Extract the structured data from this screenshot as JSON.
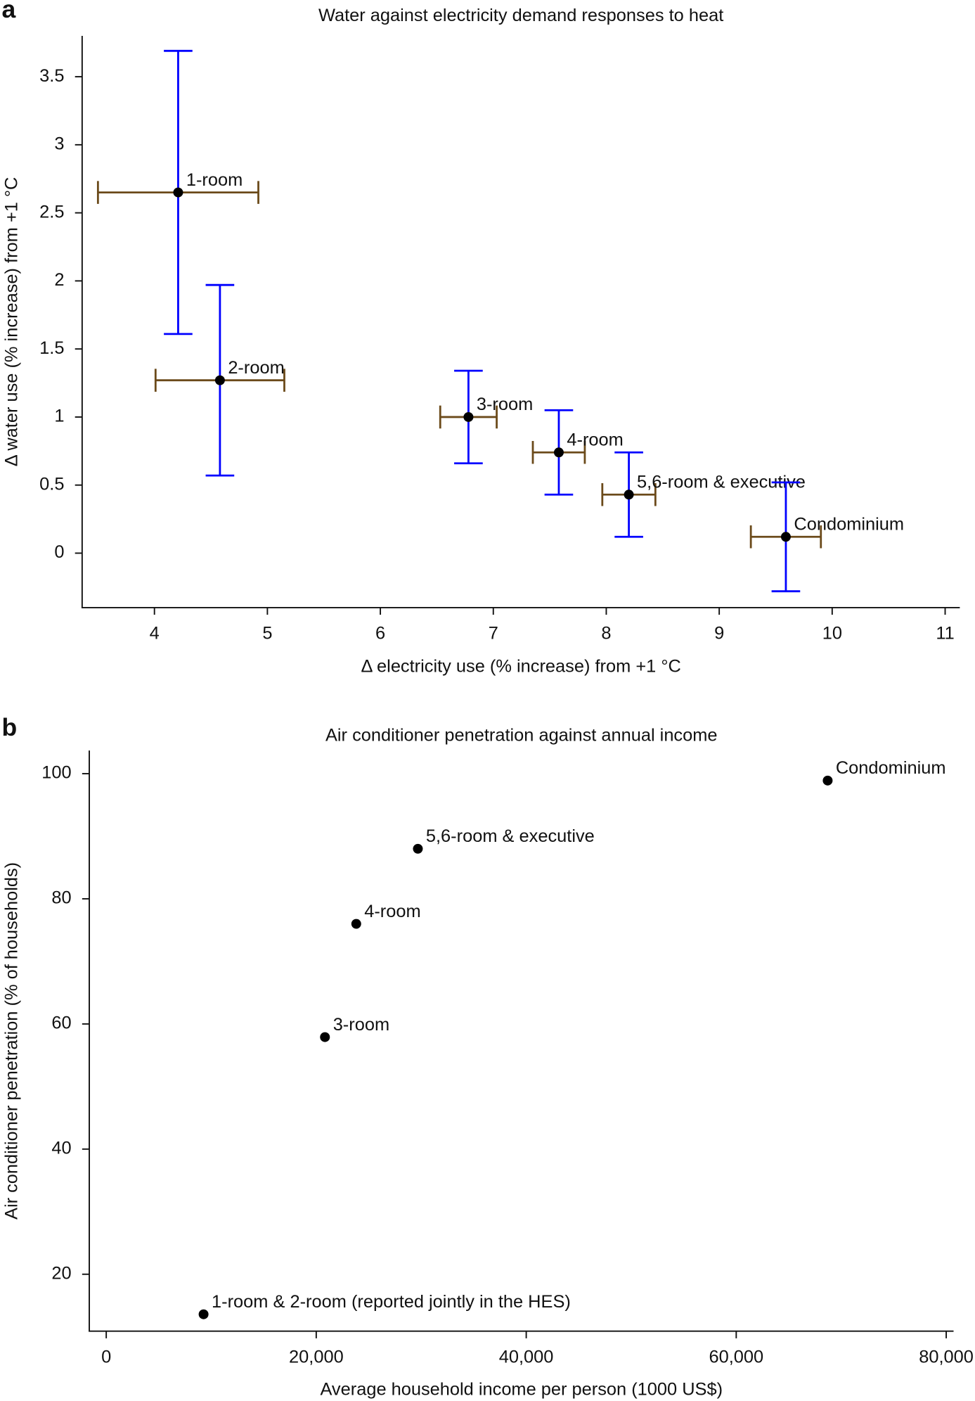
{
  "chart_data": [
    {
      "type": "scatter",
      "panel_label": "a",
      "title": "Water against electricity demand responses to heat",
      "xlabel": "Δ electricity use (% increase) from +1 °C",
      "ylabel": "Δ water use (% increase) from +1 °C",
      "labels": [
        "1-room",
        "2-room",
        "3-room",
        "4-room",
        "5,6-room & executive",
        "Condominium"
      ],
      "x": [
        4.21,
        4.58,
        6.78,
        7.58,
        8.2,
        9.59
      ],
      "values": [
        2.65,
        1.27,
        1.0,
        0.74,
        0.43,
        0.12
      ],
      "xerr": [
        0.71,
        0.57,
        0.25,
        0.23,
        0.235,
        0.31
      ],
      "yerr": [
        1.04,
        0.7,
        0.34,
        0.31,
        0.31,
        0.4
      ],
      "xlim": [
        3.36,
        11.13
      ],
      "ylim": [
        -0.4,
        3.8
      ],
      "xticks": [
        4,
        5,
        6,
        7,
        8,
        9,
        10,
        11
      ],
      "yticks": [
        0,
        0.5,
        1,
        1.5,
        2,
        2.5,
        3,
        3.5
      ],
      "point_color": "#000000",
      "yerr_color": "#0000ff",
      "xerr_color": "#6b4a1a"
    },
    {
      "type": "scatter",
      "panel_label": "b",
      "title": "Air conditioner penetration against annual income",
      "xlabel": "Average household income per person (1000 US$)",
      "ylabel": "Air conditioner penetration (% of households)",
      "labels": [
        "1-room & 2-room (reported jointly in the HES)",
        "3-room",
        "4-room",
        "5,6-room & executive",
        "Condominium"
      ],
      "x": [
        9270,
        20830,
        23810,
        29680,
        68710
      ],
      "values": [
        13.6,
        57.9,
        76.0,
        88.0,
        98.9
      ],
      "xlim": [
        -1615,
        80700
      ],
      "ylim": [
        10.9,
        103.7
      ],
      "xticks": [
        0,
        {
          "value": 20000,
          "label": "20,000"
        },
        {
          "value": 40000,
          "label": "40,000"
        },
        {
          "value": 60000,
          "label": "60,000"
        },
        {
          "value": 80000,
          "label": "80,000"
        }
      ],
      "yticks": [
        20,
        40,
        60,
        80,
        100
      ],
      "point_color": "#000000"
    }
  ]
}
